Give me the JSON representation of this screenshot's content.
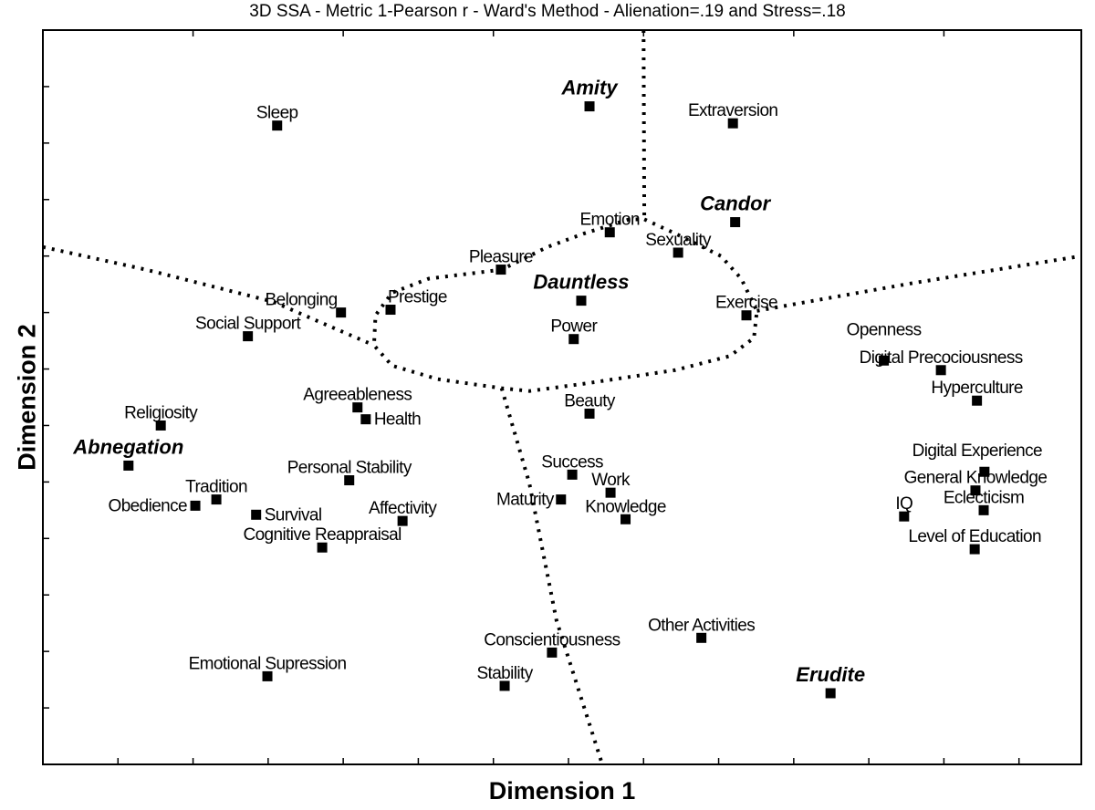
{
  "chart_data": {
    "type": "scatter",
    "title": "3D SSA - Metric 1-Pearson r - Ward's Method - Alienation=.19 and Stress=.18",
    "xlabel": "Dimension 1",
    "ylabel": "Dimension 2",
    "xlim": [
      0,
      13.83
    ],
    "ylim": [
      0,
      13
    ],
    "grid": false,
    "legend": "none",
    "tick_labels_shown": false,
    "marker": "square",
    "color": "#000000",
    "points": [
      {
        "label": "Sleep",
        "x": 3.12,
        "y": 11.31
      },
      {
        "label": "Amity",
        "x": 7.28,
        "y": 11.65,
        "cluster": true
      },
      {
        "label": "Extraversion",
        "x": 9.19,
        "y": 11.35
      },
      {
        "label": "Candor",
        "x": 9.22,
        "y": 9.6,
        "cluster": true
      },
      {
        "label": "Emotion",
        "x": 7.55,
        "y": 9.42
      },
      {
        "label": "Sexuality",
        "x": 8.46,
        "y": 9.06
      },
      {
        "label": "Pleasure",
        "x": 6.1,
        "y": 8.76
      },
      {
        "label": "Dauntless",
        "x": 7.17,
        "y": 8.21,
        "cluster": true
      },
      {
        "label": "Exercise",
        "x": 9.37,
        "y": 7.95
      },
      {
        "label": "Belonging",
        "x": 3.97,
        "y": 8.0
      },
      {
        "label": "Prestige",
        "x": 4.63,
        "y": 8.05
      },
      {
        "label": "Social Support",
        "x": 2.73,
        "y": 7.58
      },
      {
        "label": "Power",
        "x": 7.07,
        "y": 7.53
      },
      {
        "label": "Openness",
        "x": 11.2,
        "y": 7.15
      },
      {
        "label": "Digital Precociousness",
        "x": 11.96,
        "y": 6.98
      },
      {
        "label": "Hyperculture",
        "x": 12.44,
        "y": 6.44
      },
      {
        "label": "Agreeableness",
        "x": 4.19,
        "y": 6.32
      },
      {
        "label": "Health",
        "x": 4.3,
        "y": 6.11
      },
      {
        "label": "Beauty",
        "x": 7.28,
        "y": 6.21
      },
      {
        "label": "Religiosity",
        "x": 1.57,
        "y": 6.0
      },
      {
        "label": "Abnegation",
        "x": 1.14,
        "y": 5.29,
        "cluster": true
      },
      {
        "label": "Personal Stability",
        "x": 4.08,
        "y": 5.03
      },
      {
        "label": "Success",
        "x": 7.05,
        "y": 5.13
      },
      {
        "label": "Digital Experience",
        "x": 12.54,
        "y": 5.18
      },
      {
        "label": "General Knowledge",
        "x": 12.42,
        "y": 4.85
      },
      {
        "label": "Work",
        "x": 7.56,
        "y": 4.81
      },
      {
        "label": "Maturity",
        "x": 6.9,
        "y": 4.69
      },
      {
        "label": "Tradition",
        "x": 2.31,
        "y": 4.69
      },
      {
        "label": "Obedience",
        "x": 2.03,
        "y": 4.58
      },
      {
        "label": "Eclecticism",
        "x": 12.53,
        "y": 4.5
      },
      {
        "label": "Survival",
        "x": 2.84,
        "y": 4.42
      },
      {
        "label": "IQ",
        "x": 11.47,
        "y": 4.39
      },
      {
        "label": "Knowledge",
        "x": 7.76,
        "y": 4.34
      },
      {
        "label": "Affectivity",
        "x": 4.79,
        "y": 4.31
      },
      {
        "label": "Cognitive Reappraisal",
        "x": 3.72,
        "y": 3.84
      },
      {
        "label": "Level of Education",
        "x": 12.41,
        "y": 3.81
      },
      {
        "label": "Other Activities",
        "x": 8.77,
        "y": 2.24
      },
      {
        "label": "Conscientiousness",
        "x": 6.78,
        "y": 1.98
      },
      {
        "label": "Emotional Supression",
        "x": 2.99,
        "y": 1.56
      },
      {
        "label": "Stability",
        "x": 6.15,
        "y": 1.39
      },
      {
        "label": "Erudite",
        "x": 10.49,
        "y": 1.26,
        "cluster": true
      }
    ],
    "partition_lines": [
      [
        [
          8.0,
          13.0
        ],
        [
          8.01,
          9.65
        ]
      ],
      [
        [
          8.01,
          9.65
        ],
        [
          8.42,
          9.4
        ],
        [
          9.03,
          9.0
        ],
        [
          9.3,
          8.6
        ],
        [
          9.51,
          8.03
        ],
        [
          9.47,
          7.55
        ],
        [
          9.15,
          7.23
        ],
        [
          8.42,
          6.98
        ],
        [
          7.21,
          6.74
        ],
        [
          6.48,
          6.61
        ],
        [
          6.11,
          6.66
        ],
        [
          5.26,
          6.82
        ],
        [
          4.65,
          7.06
        ],
        [
          4.41,
          7.42
        ],
        [
          4.43,
          7.95
        ],
        [
          4.65,
          8.35
        ],
        [
          5.14,
          8.6
        ],
        [
          5.63,
          8.68
        ],
        [
          6.11,
          8.76
        ],
        [
          6.72,
          9.16
        ],
        [
          7.21,
          9.4
        ],
        [
          7.81,
          9.65
        ],
        [
          8.01,
          9.65
        ]
      ],
      [
        [
          0,
          9.16
        ],
        [
          1.37,
          8.76
        ],
        [
          3.07,
          8.19
        ],
        [
          3.62,
          7.87
        ],
        [
          4.41,
          7.42
        ]
      ],
      [
        [
          9.51,
          8.03
        ],
        [
          11.58,
          8.52
        ],
        [
          13.83,
          9.0
        ]
      ],
      [
        [
          6.11,
          6.66
        ],
        [
          6.48,
          4.97
        ],
        [
          6.84,
          2.55
        ],
        [
          7.45,
          0
        ]
      ]
    ]
  }
}
